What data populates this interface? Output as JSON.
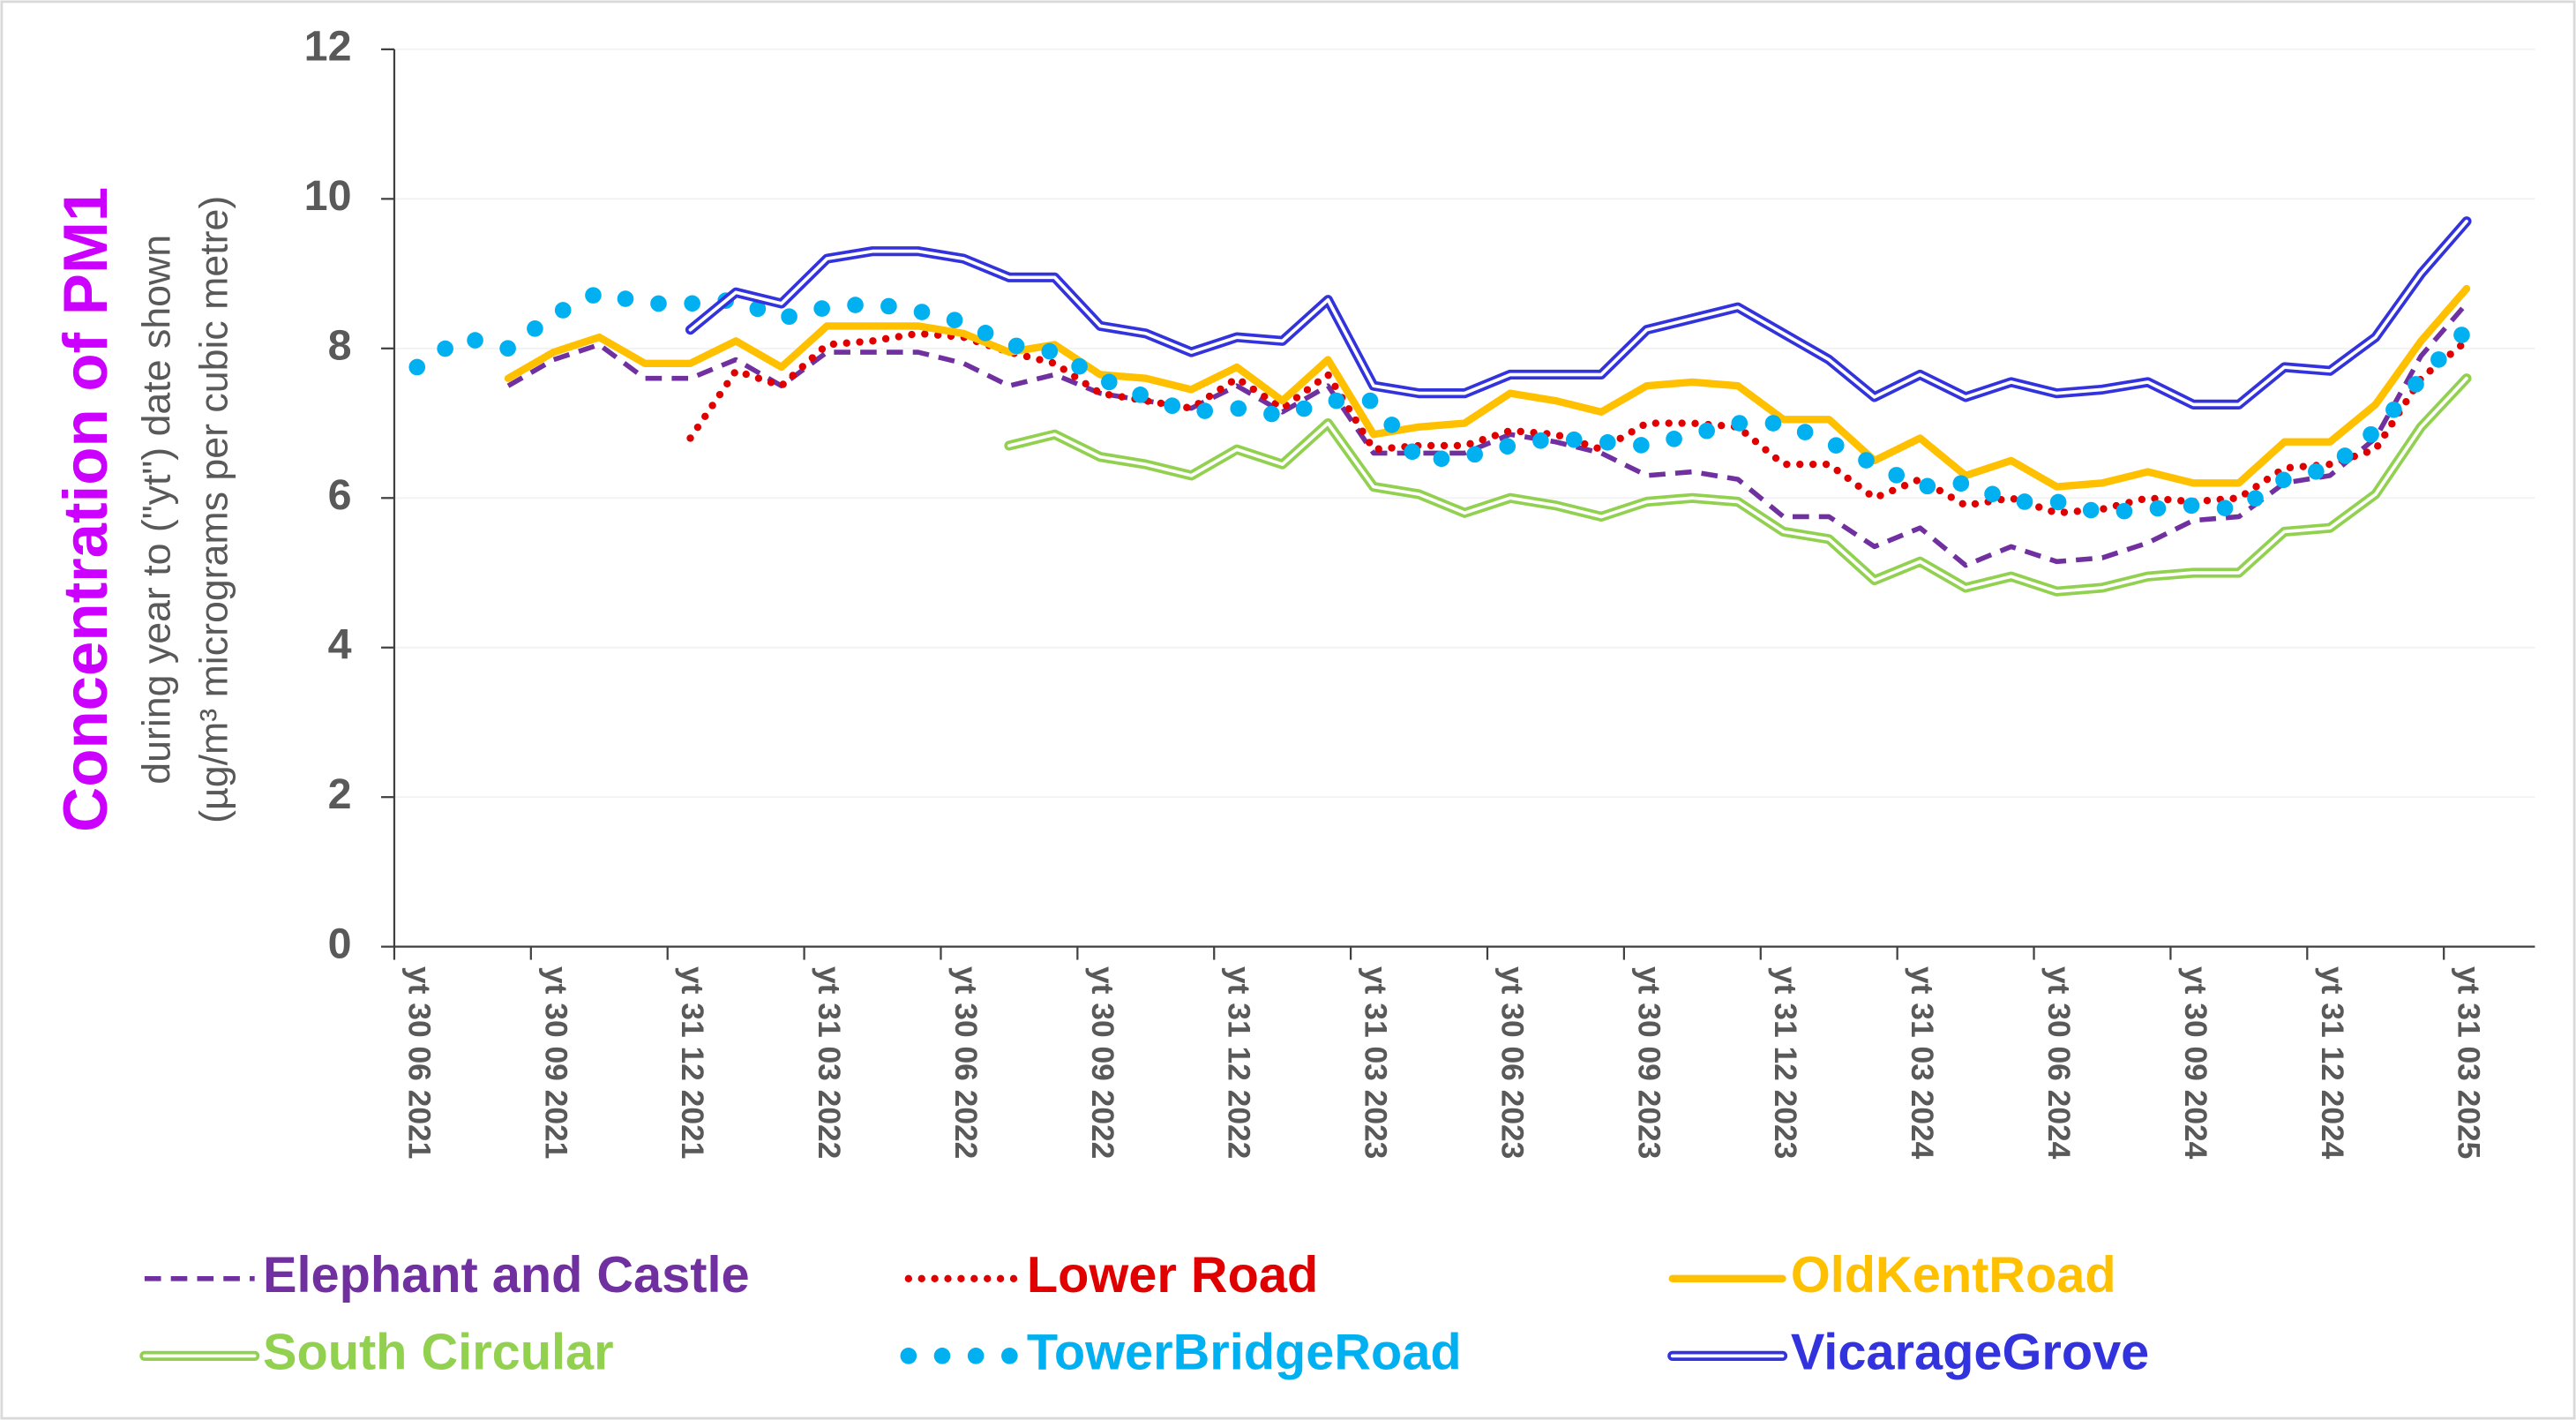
{
  "chart_data": {
    "type": "line",
    "y_label": [
      "Concentration of PM1",
      "during year to (\"yt\") date shown",
      "(µg/m³ micrograms per cubic metre)"
    ],
    "y_label_color": "#cc00ff",
    "categories": [
      "yt 30 06 2021",
      null,
      null,
      "yt 30 09 2021",
      null,
      null,
      "yt 31 12 2021",
      null,
      null,
      "yt 31 03 2022",
      null,
      null,
      "yt 30 06 2022",
      null,
      null,
      "yt 30 09 2022",
      null,
      null,
      "yt 31 12 2022",
      null,
      null,
      "yt 31 03 2023",
      null,
      null,
      "yt 30 06 2023",
      null,
      null,
      "yt 30 09 2023",
      null,
      null,
      "yt 31 12 2023",
      null,
      null,
      "yt 31 03 2024",
      null,
      null,
      "yt 30 06 2024",
      null,
      null,
      "yt 30 09 2024",
      null,
      null,
      "yt 31 12 2024",
      null,
      null,
      "yt 31 03 2025",
      null
    ],
    "ylim": [
      0,
      12
    ],
    "yticks": [
      0,
      2,
      4,
      6,
      8,
      10,
      12
    ],
    "grid": true,
    "legend": "bottom",
    "series": [
      {
        "name": "Elephant and Castle",
        "color": "#7030a0",
        "style": "dashed",
        "values": [
          null,
          null,
          7.5,
          7.85,
          8.05,
          7.6,
          7.6,
          7.85,
          7.5,
          7.95,
          7.95,
          7.95,
          7.8,
          7.5,
          7.65,
          7.4,
          7.3,
          7.2,
          7.5,
          7.15,
          7.5,
          6.6,
          6.6,
          6.6,
          6.85,
          6.75,
          6.6,
          6.3,
          6.35,
          6.25,
          5.75,
          5.75,
          5.35,
          5.6,
          5.1,
          5.35,
          5.15,
          5.2,
          5.4,
          5.7,
          5.75,
          6.2,
          6.3,
          6.8,
          7.9,
          8.6,
          null
        ]
      },
      {
        "name": "Lower Road",
        "color": "#e00000",
        "style": "dotted",
        "values": [
          null,
          null,
          null,
          null,
          null,
          null,
          6.8,
          7.7,
          7.5,
          8.05,
          8.1,
          8.2,
          8.15,
          7.95,
          7.8,
          7.4,
          7.3,
          7.2,
          7.6,
          7.2,
          7.65,
          6.65,
          6.7,
          6.7,
          6.9,
          6.85,
          6.65,
          7.0,
          7.0,
          6.95,
          6.45,
          6.45,
          6.0,
          6.25,
          5.9,
          6.0,
          5.8,
          5.85,
          6.0,
          5.95,
          6.0,
          6.4,
          6.45,
          6.65,
          7.6,
          8.1,
          null
        ]
      },
      {
        "name": "OldKentRoad",
        "color": "#ffc000",
        "style": "solid",
        "values": [
          null,
          null,
          7.6,
          7.95,
          8.15,
          7.8,
          7.8,
          8.1,
          7.75,
          8.3,
          8.3,
          8.3,
          8.2,
          7.95,
          8.05,
          7.65,
          7.6,
          7.45,
          7.75,
          7.3,
          7.85,
          6.85,
          6.95,
          7.0,
          7.4,
          7.3,
          7.15,
          7.5,
          7.55,
          7.5,
          7.05,
          7.05,
          6.5,
          6.8,
          6.3,
          6.5,
          6.15,
          6.2,
          6.35,
          6.2,
          6.2,
          6.75,
          6.75,
          7.25,
          8.1,
          8.8,
          null
        ]
      },
      {
        "name": "South Circular",
        "color": "#92d050",
        "style": "double",
        "values": [
          null,
          null,
          null,
          null,
          null,
          null,
          null,
          null,
          null,
          null,
          null,
          null,
          null,
          6.7,
          6.85,
          6.55,
          6.45,
          6.3,
          6.65,
          6.45,
          7.0,
          6.15,
          6.05,
          5.8,
          6.0,
          5.9,
          5.75,
          5.95,
          6.0,
          5.95,
          5.55,
          5.45,
          4.9,
          5.15,
          4.8,
          4.95,
          4.75,
          4.8,
          4.95,
          5.0,
          5.0,
          5.55,
          5.6,
          6.05,
          6.95,
          7.6,
          null
        ]
      },
      {
        "name": "TowerBridgeRoad",
        "color": "#00b0f0",
        "style": "bigdots",
        "values": [
          7.75,
          8.15,
          8.0,
          8.45,
          8.75,
          8.6,
          8.6,
          8.65,
          8.4,
          8.55,
          8.6,
          8.5,
          8.35,
          8.05,
          7.95,
          7.6,
          7.35,
          7.15,
          7.2,
          7.1,
          7.3,
          7.3,
          6.5,
          6.55,
          6.7,
          6.8,
          6.75,
          6.7,
          6.85,
          7.0,
          7.0,
          6.75,
          6.45,
          6.15,
          6.2,
          5.95,
          5.95,
          5.8,
          5.85,
          5.9,
          5.85,
          6.25,
          6.4,
          6.9,
          7.6,
          8.25,
          null
        ]
      },
      {
        "name": "VicarageGrove",
        "color": "#3333dd",
        "style": "double",
        "values": [
          null,
          null,
          null,
          null,
          null,
          null,
          8.25,
          8.75,
          8.6,
          9.2,
          9.3,
          9.3,
          9.2,
          8.95,
          8.95,
          8.3,
          8.2,
          7.95,
          8.15,
          8.1,
          8.65,
          7.5,
          7.4,
          7.4,
          7.65,
          7.65,
          7.65,
          8.25,
          8.4,
          8.55,
          8.2,
          7.85,
          7.35,
          7.65,
          7.35,
          7.55,
          7.4,
          7.45,
          7.55,
          7.25,
          7.25,
          7.75,
          7.7,
          8.15,
          9.0,
          9.7,
          null
        ]
      }
    ]
  }
}
